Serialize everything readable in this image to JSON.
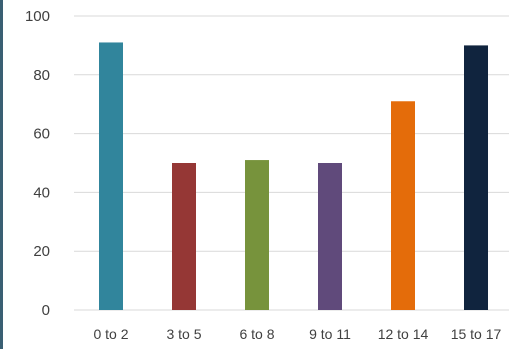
{
  "chart_data": {
    "type": "bar",
    "categories": [
      "0 to 2",
      "3 to 5",
      "6 to 8",
      "9 to 11",
      "12 to 14",
      "15 to 17"
    ],
    "values": [
      91,
      50,
      51,
      50,
      71,
      90
    ],
    "colors": [
      "#31859c",
      "#953735",
      "#77933c",
      "#604a7b",
      "#e46c0a",
      "#10243e"
    ],
    "ylim": [
      0,
      100
    ],
    "yticks": [
      "0",
      "20",
      "40",
      "60",
      "80",
      "100"
    ],
    "grid": true,
    "legend": "none",
    "title": "",
    "xlabel": "",
    "ylabel": ""
  }
}
